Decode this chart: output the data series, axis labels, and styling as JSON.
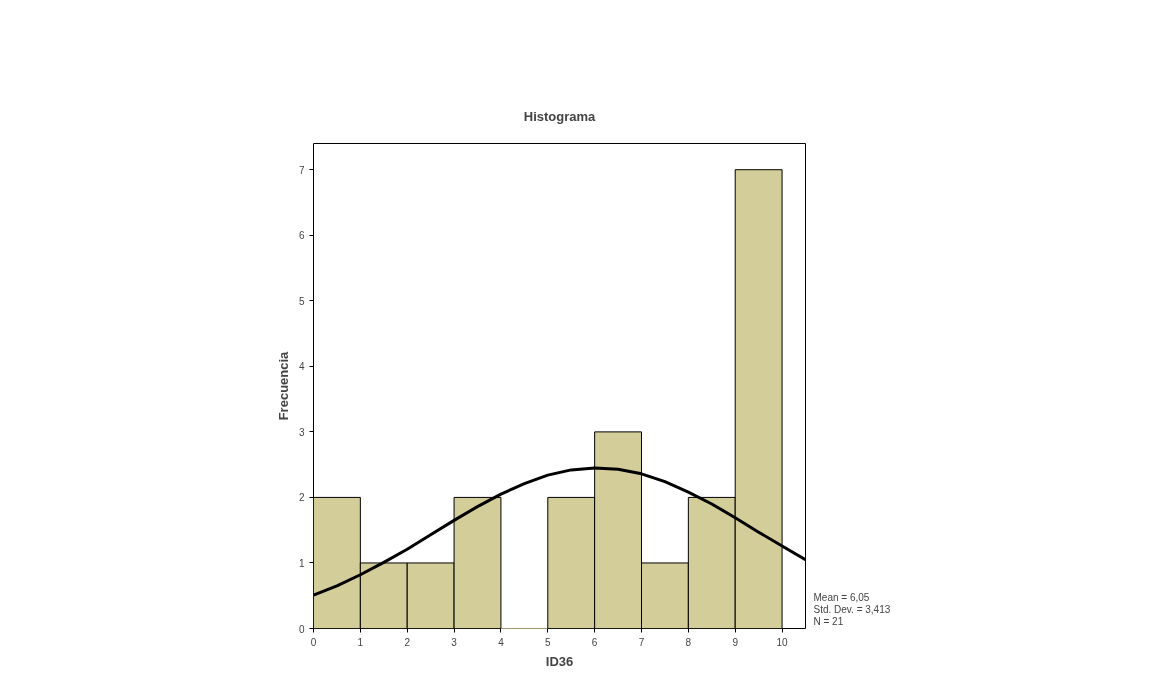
{
  "chart_data": {
    "type": "histogram",
    "title": "Histograma",
    "xlabel": "ID36",
    "ylabel": "Frecuencia",
    "bins": [
      0,
      1,
      2,
      3,
      4,
      5,
      6,
      7,
      8,
      9,
      10
    ],
    "values": [
      2,
      1,
      1,
      2,
      0,
      2,
      3,
      1,
      2,
      7
    ],
    "color": "#d3cd9a",
    "series": [
      {
        "type": "line",
        "color": "#000000",
        "x": [
          0,
          0.5,
          1,
          1.5,
          2,
          2.5,
          3,
          3.5,
          4,
          4.5,
          5,
          5.5,
          6,
          6.5,
          7,
          7.5,
          8,
          8.5,
          9,
          9.5,
          10,
          10.5
        ],
        "values": [
          0.51,
          0.65,
          0.82,
          1.01,
          1.21,
          1.43,
          1.65,
          1.86,
          2.05,
          2.21,
          2.34,
          2.42,
          2.45,
          2.43,
          2.36,
          2.24,
          2.08,
          1.9,
          1.69,
          1.47,
          1.26,
          1.05
        ]
      }
    ],
    "xlim": [
      0,
      10.5
    ],
    "ylim": [
      0,
      7.4
    ],
    "xticks": [
      0,
      1,
      2,
      3,
      4,
      5,
      6,
      7,
      8,
      9,
      10
    ],
    "yticks": [
      0,
      1,
      2,
      3,
      4,
      5,
      6,
      7
    ],
    "grid": false,
    "annotations": [
      "Mean = 6,05",
      "Std. Dev. = 3,413",
      "N = 21"
    ]
  }
}
